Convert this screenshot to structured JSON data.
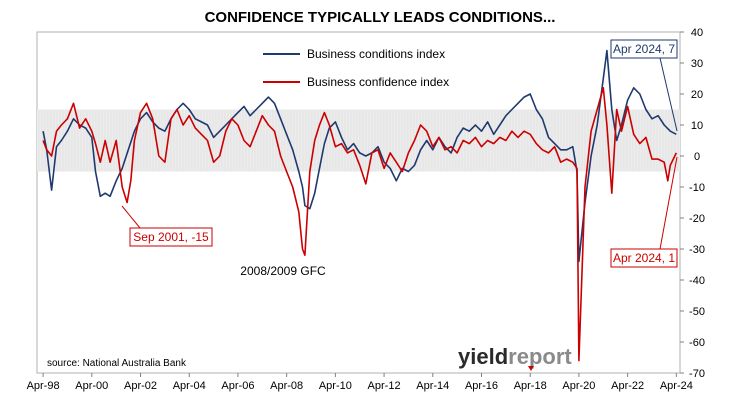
{
  "chart_data": {
    "type": "line",
    "title": "CONFIDENCE TYPICALLY LEADS CONDITIONS...",
    "xlabel": "",
    "ylabel": "",
    "x_ticks": [
      "Apr-98",
      "Apr-00",
      "Apr-02",
      "Apr-04",
      "Apr-06",
      "Apr-08",
      "Apr-10",
      "Apr-12",
      "Apr-14",
      "Apr-16",
      "Apr-18",
      "Apr-20",
      "Apr-22",
      "Apr-24"
    ],
    "y_ticks": [
      "40",
      "30",
      "20",
      "10",
      "0",
      "-10",
      "-20",
      "-30",
      "-40",
      "-50",
      "-60",
      "-70"
    ],
    "ylim": [
      -70,
      40
    ],
    "grid": "off",
    "legend_position": "top-center",
    "colors": {
      "conditions": "#1f3a6e",
      "confidence": "#cc0000",
      "band": "#d9d9d9"
    },
    "shaded_band": [
      -5,
      15
    ],
    "series": [
      {
        "name": "Business conditions index",
        "points": [
          [
            1998.25,
            8
          ],
          [
            1998.4,
            2
          ],
          [
            1998.6,
            -11
          ],
          [
            1998.8,
            3
          ],
          [
            1999.0,
            5
          ],
          [
            1999.25,
            8
          ],
          [
            1999.5,
            12
          ],
          [
            1999.75,
            10
          ],
          [
            2000.0,
            9
          ],
          [
            2000.25,
            6
          ],
          [
            2000.4,
            -5
          ],
          [
            2000.6,
            -13
          ],
          [
            2000.8,
            -12
          ],
          [
            2001.0,
            -13
          ],
          [
            2001.25,
            -8
          ],
          [
            2001.5,
            -4
          ],
          [
            2001.75,
            2
          ],
          [
            2002.0,
            8
          ],
          [
            2002.25,
            12
          ],
          [
            2002.5,
            14
          ],
          [
            2002.75,
            11
          ],
          [
            2003.0,
            9
          ],
          [
            2003.25,
            8
          ],
          [
            2003.5,
            12
          ],
          [
            2003.75,
            15
          ],
          [
            2004.0,
            17
          ],
          [
            2004.25,
            15
          ],
          [
            2004.5,
            12
          ],
          [
            2004.75,
            11
          ],
          [
            2005.0,
            10
          ],
          [
            2005.25,
            6
          ],
          [
            2005.5,
            8
          ],
          [
            2005.75,
            10
          ],
          [
            2006.0,
            12
          ],
          [
            2006.25,
            14
          ],
          [
            2006.5,
            16
          ],
          [
            2006.75,
            13
          ],
          [
            2007.0,
            15
          ],
          [
            2007.25,
            17
          ],
          [
            2007.5,
            19
          ],
          [
            2007.75,
            17
          ],
          [
            2008.0,
            12
          ],
          [
            2008.25,
            7
          ],
          [
            2008.5,
            2
          ],
          [
            2008.75,
            -5
          ],
          [
            2008.9,
            -10
          ],
          [
            2009.0,
            -16
          ],
          [
            2009.2,
            -17
          ],
          [
            2009.4,
            -12
          ],
          [
            2009.6,
            -4
          ],
          [
            2009.8,
            4
          ],
          [
            2010.0,
            9
          ],
          [
            2010.25,
            11
          ],
          [
            2010.5,
            6
          ],
          [
            2010.75,
            2
          ],
          [
            2011.0,
            4
          ],
          [
            2011.25,
            1
          ],
          [
            2011.5,
            0
          ],
          [
            2011.75,
            1
          ],
          [
            2012.0,
            3
          ],
          [
            2012.25,
            -2
          ],
          [
            2012.5,
            -4
          ],
          [
            2012.75,
            -8
          ],
          [
            2013.0,
            -4
          ],
          [
            2013.25,
            -5
          ],
          [
            2013.5,
            -3
          ],
          [
            2013.75,
            2
          ],
          [
            2014.0,
            5
          ],
          [
            2014.25,
            2
          ],
          [
            2014.5,
            6
          ],
          [
            2014.75,
            3
          ],
          [
            2015.0,
            1
          ],
          [
            2015.25,
            6
          ],
          [
            2015.5,
            9
          ],
          [
            2015.75,
            8
          ],
          [
            2016.0,
            10
          ],
          [
            2016.25,
            8
          ],
          [
            2016.5,
            11
          ],
          [
            2016.75,
            7
          ],
          [
            2017.0,
            10
          ],
          [
            2017.25,
            13
          ],
          [
            2017.5,
            15
          ],
          [
            2017.75,
            17
          ],
          [
            2018.0,
            19
          ],
          [
            2018.25,
            20
          ],
          [
            2018.5,
            15
          ],
          [
            2018.75,
            12
          ],
          [
            2019.0,
            6
          ],
          [
            2019.25,
            4
          ],
          [
            2019.5,
            2
          ],
          [
            2019.75,
            2
          ],
          [
            2020.0,
            3
          ],
          [
            2020.17,
            -5
          ],
          [
            2020.25,
            -34
          ],
          [
            2020.5,
            -15
          ],
          [
            2020.75,
            0
          ],
          [
            2021.0,
            10
          ],
          [
            2021.25,
            25
          ],
          [
            2021.4,
            34
          ],
          [
            2021.6,
            15
          ],
          [
            2021.8,
            5
          ],
          [
            2022.0,
            10
          ],
          [
            2022.25,
            18
          ],
          [
            2022.5,
            22
          ],
          [
            2022.75,
            20
          ],
          [
            2023.0,
            15
          ],
          [
            2023.25,
            12
          ],
          [
            2023.5,
            13
          ],
          [
            2023.75,
            10
          ],
          [
            2024.0,
            8
          ],
          [
            2024.25,
            7
          ]
        ]
      },
      {
        "name": "Business confidence index",
        "points": [
          [
            1998.25,
            5
          ],
          [
            1998.4,
            2
          ],
          [
            1998.6,
            0
          ],
          [
            1998.8,
            8
          ],
          [
            1999.0,
            10
          ],
          [
            1999.25,
            12
          ],
          [
            1999.5,
            17
          ],
          [
            1999.75,
            9
          ],
          [
            2000.0,
            12
          ],
          [
            2000.25,
            8
          ],
          [
            2000.4,
            4
          ],
          [
            2000.6,
            -2
          ],
          [
            2000.8,
            5
          ],
          [
            2001.0,
            -2
          ],
          [
            2001.25,
            5
          ],
          [
            2001.5,
            -10
          ],
          [
            2001.7,
            -15
          ],
          [
            2001.85,
            -8
          ],
          [
            2002.0,
            5
          ],
          [
            2002.25,
            14
          ],
          [
            2002.5,
            17
          ],
          [
            2002.75,
            12
          ],
          [
            2003.0,
            0
          ],
          [
            2003.25,
            -2
          ],
          [
            2003.5,
            12
          ],
          [
            2003.75,
            15
          ],
          [
            2004.0,
            10
          ],
          [
            2004.25,
            13
          ],
          [
            2004.5,
            9
          ],
          [
            2004.75,
            7
          ],
          [
            2005.0,
            5
          ],
          [
            2005.25,
            -2
          ],
          [
            2005.5,
            0
          ],
          [
            2005.75,
            8
          ],
          [
            2006.0,
            12
          ],
          [
            2006.25,
            10
          ],
          [
            2006.5,
            5
          ],
          [
            2006.75,
            3
          ],
          [
            2007.0,
            8
          ],
          [
            2007.25,
            13
          ],
          [
            2007.5,
            10
          ],
          [
            2007.75,
            8
          ],
          [
            2008.0,
            0
          ],
          [
            2008.25,
            -5
          ],
          [
            2008.5,
            -10
          ],
          [
            2008.75,
            -18
          ],
          [
            2008.9,
            -30
          ],
          [
            2009.0,
            -32
          ],
          [
            2009.2,
            -5
          ],
          [
            2009.4,
            5
          ],
          [
            2009.6,
            10
          ],
          [
            2009.8,
            14
          ],
          [
            2010.0,
            10
          ],
          [
            2010.25,
            3
          ],
          [
            2010.5,
            4
          ],
          [
            2010.75,
            1
          ],
          [
            2011.0,
            2
          ],
          [
            2011.25,
            -3
          ],
          [
            2011.5,
            -9
          ],
          [
            2011.75,
            1
          ],
          [
            2012.0,
            2
          ],
          [
            2012.25,
            -4
          ],
          [
            2012.5,
            1
          ],
          [
            2012.75,
            -2
          ],
          [
            2013.0,
            -5
          ],
          [
            2013.25,
            1
          ],
          [
            2013.5,
            5
          ],
          [
            2013.75,
            10
          ],
          [
            2014.0,
            8
          ],
          [
            2014.25,
            3
          ],
          [
            2014.5,
            6
          ],
          [
            2014.75,
            2
          ],
          [
            2015.0,
            3
          ],
          [
            2015.25,
            1
          ],
          [
            2015.5,
            5
          ],
          [
            2015.75,
            4
          ],
          [
            2016.0,
            6
          ],
          [
            2016.25,
            3
          ],
          [
            2016.5,
            5
          ],
          [
            2016.75,
            4
          ],
          [
            2017.0,
            6
          ],
          [
            2017.25,
            5
          ],
          [
            2017.5,
            8
          ],
          [
            2017.75,
            6
          ],
          [
            2018.0,
            8
          ],
          [
            2018.25,
            7
          ],
          [
            2018.5,
            4
          ],
          [
            2018.75,
            2
          ],
          [
            2019.0,
            1
          ],
          [
            2019.25,
            3
          ],
          [
            2019.5,
            -2
          ],
          [
            2019.75,
            -1
          ],
          [
            2020.0,
            -2
          ],
          [
            2020.17,
            -4
          ],
          [
            2020.25,
            -66
          ],
          [
            2020.5,
            -10
          ],
          [
            2020.75,
            8
          ],
          [
            2021.0,
            15
          ],
          [
            2021.25,
            22
          ],
          [
            2021.4,
            10
          ],
          [
            2021.6,
            -12
          ],
          [
            2021.8,
            15
          ],
          [
            2022.0,
            8
          ],
          [
            2022.25,
            16
          ],
          [
            2022.5,
            7
          ],
          [
            2022.75,
            4
          ],
          [
            2023.0,
            6
          ],
          [
            2023.25,
            -1
          ],
          [
            2023.5,
            -1
          ],
          [
            2023.75,
            -2
          ],
          [
            2023.9,
            -8
          ],
          [
            2024.0,
            -3
          ],
          [
            2024.25,
            1
          ]
        ]
      }
    ],
    "annotations": {
      "sep_2001": "Sep 2001, -15",
      "gfc": "2008/2009 GFC",
      "apr_2024_conditions": "Apr 2024, 7",
      "apr_2024_confidence": "Apr 2024, 1"
    },
    "source": "source: National Australia Bank",
    "logo": {
      "part1": "yield",
      "part2": "report"
    }
  }
}
